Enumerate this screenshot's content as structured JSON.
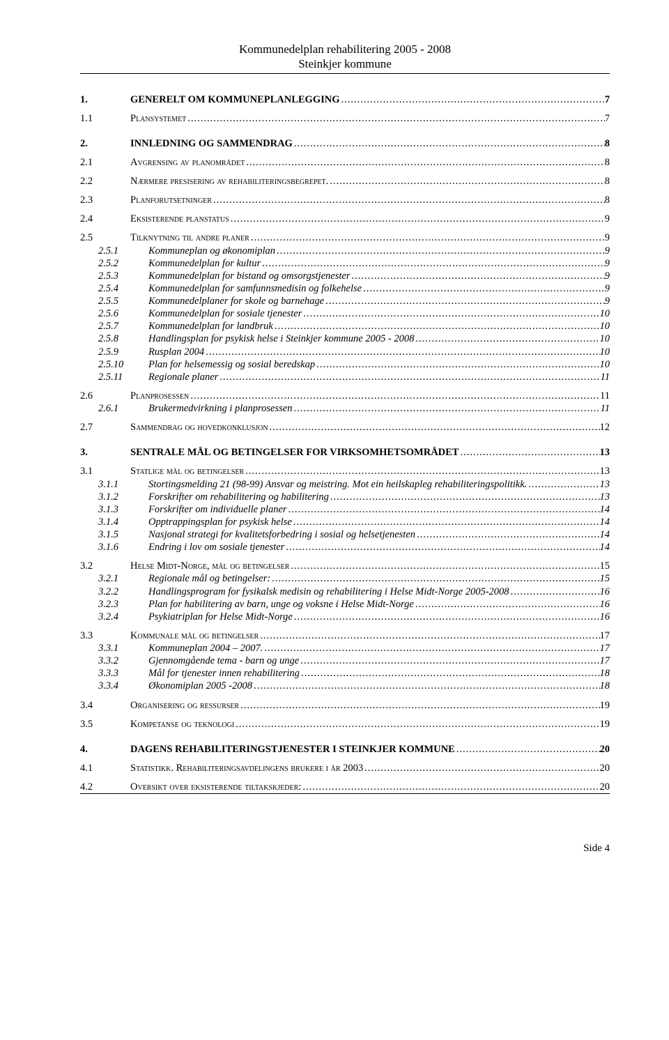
{
  "header": {
    "line1": "Kommunedelplan rehabilitering 2005 - 2008",
    "line2": "Steinkjer kommune"
  },
  "toc": [
    {
      "level": 1,
      "num": "1.",
      "label": "GENERELT OM KOMMUNEPLANLEGGING",
      "page": "7"
    },
    {
      "level": 2,
      "num": "1.1",
      "label": "Plansystemet",
      "page": "7"
    },
    {
      "level": 1,
      "num": "2.",
      "label": "INNLEDNING OG SAMMENDRAG",
      "page": "8"
    },
    {
      "level": 2,
      "num": "2.1",
      "label": "Avgrensing av planområdet",
      "page": "8"
    },
    {
      "level": 2,
      "num": "2.2",
      "label": "Nærmere presisering av rehabiliteringsbegrepet.",
      "page": "8"
    },
    {
      "level": 2,
      "num": "2.3",
      "label": "Planforutsetninger",
      "page": "8"
    },
    {
      "level": 2,
      "num": "2.4",
      "label": "Eksisterende planstatus",
      "page": "9"
    },
    {
      "level": 2,
      "num": "2.5",
      "label": "Tilknytning til andre planer",
      "page": "9"
    },
    {
      "level": 3,
      "num": "2.5.1",
      "label": "Kommuneplan og økonomiplan",
      "page": "9"
    },
    {
      "level": 3,
      "num": "2.5.2",
      "label": "Kommunedelplan for kultur",
      "page": "9"
    },
    {
      "level": 3,
      "num": "2.5.3",
      "label": "Kommunedelplan for bistand og omsorgstjenester",
      "page": "9"
    },
    {
      "level": 3,
      "num": "2.5.4",
      "label": "Kommunedelplan for samfunnsmedisin og folkehelse",
      "page": "9"
    },
    {
      "level": 3,
      "num": "2.5.5",
      "label": "Kommunedelplaner for skole og barnehage",
      "page": "9"
    },
    {
      "level": 3,
      "num": "2.5.6",
      "label": "Kommunedelplan for sosiale tjenester",
      "page": "10"
    },
    {
      "level": 3,
      "num": "2.5.7",
      "label": "Kommunedelplan for landbruk",
      "page": "10"
    },
    {
      "level": 3,
      "num": "2.5.8",
      "label": "Handlingsplan for psykisk helse i Steinkjer kommune 2005 - 2008",
      "page": "10"
    },
    {
      "level": 3,
      "num": "2.5.9",
      "label": "Rusplan 2004",
      "page": "10"
    },
    {
      "level": 3,
      "num": "2.5.10",
      "label": "Plan for helsemessig og sosial beredskap",
      "page": "10"
    },
    {
      "level": 3,
      "num": "2.5.11",
      "label": "Regionale planer",
      "page": "11"
    },
    {
      "level": 2,
      "num": "2.6",
      "label": "Planprosessen",
      "page": "11"
    },
    {
      "level": 3,
      "num": "2.6.1",
      "label": "Brukermedvirkning i planprosessen",
      "page": "11"
    },
    {
      "level": 2,
      "num": "2.7",
      "label": "Sammendrag og hovedkonklusjon",
      "page": "12"
    },
    {
      "level": 1,
      "num": "3.",
      "label": "SENTRALE MÅL OG BETINGELSER FOR VIRKSOMHETSOMRÅDET",
      "page": "13"
    },
    {
      "level": 2,
      "num": "3.1",
      "label": "Statlige mål og betingelser",
      "page": "13"
    },
    {
      "level": 3,
      "num": "3.1.1",
      "label": "Stortingsmelding 21 (98-99) Ansvar og meistring. Mot ein heilskapleg rehabiliteringspolitikk.",
      "page": "13"
    },
    {
      "level": 3,
      "num": "3.1.2",
      "label": "Forskrifter om rehabilitering og habilitering",
      "page": "13"
    },
    {
      "level": 3,
      "num": "3.1.3",
      "label": "Forskrifter om individuelle planer",
      "page": "14"
    },
    {
      "level": 3,
      "num": "3.1.4",
      "label": "Opptrappingsplan for psykisk helse",
      "page": "14"
    },
    {
      "level": 3,
      "num": "3.1.5",
      "label": "Nasjonal strategi for kvalitetsforbedring i sosial og helsetjenesten",
      "page": "14"
    },
    {
      "level": 3,
      "num": "3.1.6",
      "label": "Endring i lov om sosiale tjenester",
      "page": "14"
    },
    {
      "level": 2,
      "num": "3.2",
      "label": "Helse Midt-Norge, mål og betingelser",
      "page": "15"
    },
    {
      "level": 3,
      "num": "3.2.1",
      "label": "Regionale mål og betingelser:",
      "page": "15"
    },
    {
      "level": 3,
      "num": "3.2.2",
      "label": "Handlingsprogram for fysikalsk medisin og rehabilitering i Helse Midt-Norge 2005-2008",
      "page": "16"
    },
    {
      "level": 3,
      "num": "3.2.3",
      "label": "Plan for habilitering av barn, unge og voksne i Helse Midt-Norge",
      "page": "16"
    },
    {
      "level": 3,
      "num": "3.2.4",
      "label": "Psykiatriplan for Helse Midt-Norge",
      "page": "16"
    },
    {
      "level": 2,
      "num": "3.3",
      "label": "Kommunale mål og betingelser",
      "page": "17"
    },
    {
      "level": 3,
      "num": "3.3.1",
      "label": "Kommuneplan 2004 – 2007.",
      "page": "17"
    },
    {
      "level": 3,
      "num": "3.3.2",
      "label": "Gjennomgående tema - barn og unge",
      "page": "17"
    },
    {
      "level": 3,
      "num": "3.3.3",
      "label": "Mål for tjenester innen rehabilitering",
      "page": "18"
    },
    {
      "level": 3,
      "num": "3.3.4",
      "label": "Økonomiplan 2005 -2008",
      "page": "18"
    },
    {
      "level": 2,
      "num": "3.4",
      "label": "Organisering og ressurser",
      "page": "19"
    },
    {
      "level": 2,
      "num": "3.5",
      "label": "Kompetanse og teknologi",
      "page": "19"
    },
    {
      "level": 1,
      "num": "4.",
      "label": "DAGENS REHABILITERINGSTJENESTER I STEINKJER KOMMUNE",
      "page": "20"
    },
    {
      "level": 2,
      "num": "4.1",
      "label": "Statistikk. Rehabiliteringsavdelingens brukere i  år 2003",
      "page": "20"
    },
    {
      "level": 2,
      "num": "4.2",
      "label": "Oversikt over eksisterende tiltakskjeder:",
      "page": "20"
    }
  ],
  "footer": {
    "label": "Side 4"
  }
}
